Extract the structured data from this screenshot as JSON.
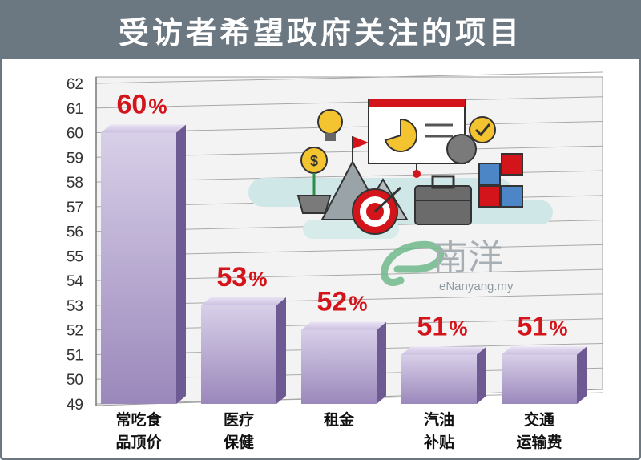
{
  "title": "受访者希望政府关注的项目",
  "watermark": {
    "logo_text": "南洋",
    "site": "eNanyang.my"
  },
  "illustration": [
    "lightbulb-icon",
    "dollar-plant-icon",
    "mountain-flag-icon",
    "target-icon",
    "pie-chart-board-icon",
    "gear-check-icon",
    "briefcase-icon",
    "puzzle-icon"
  ],
  "colors": {
    "bar": "#a898c4",
    "bar_side": "#6e5a93",
    "label": "#d3141b",
    "title_bg": "#6c7881"
  },
  "chart_data": {
    "type": "bar",
    "categories": [
      [
        "常吃食",
        "品顶价"
      ],
      [
        "医疗",
        "保健"
      ],
      [
        "租金"
      ],
      [
        "汽油",
        "补贴"
      ],
      [
        "交通",
        "运输费"
      ]
    ],
    "values": [
      60,
      53,
      52,
      51,
      51
    ],
    "data_labels": [
      {
        "num": "60",
        "unit": "%"
      },
      {
        "num": "53",
        "unit": "%"
      },
      {
        "num": "52",
        "unit": "%"
      },
      {
        "num": "51",
        "unit": "%"
      },
      {
        "num": "51",
        "unit": "%"
      }
    ],
    "ylim": [
      49,
      62
    ],
    "yticks": [
      49,
      50,
      51,
      52,
      53,
      54,
      55,
      56,
      57,
      58,
      59,
      60,
      61,
      62
    ],
    "grid": true,
    "title": "受访者希望政府关注的项目"
  }
}
